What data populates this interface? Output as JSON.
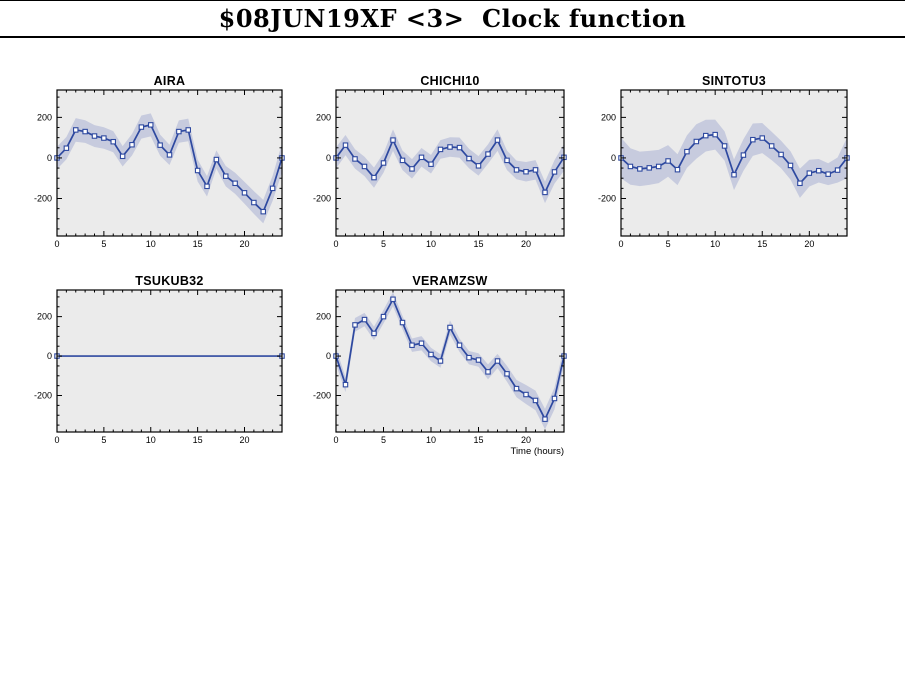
{
  "page": {
    "title": "$08JUN19XF <3>  Clock function",
    "time_axis_label": "Time (hours)"
  },
  "colors": {
    "line": "#2e49a0",
    "band": "#c7cbde",
    "plot_background": "#ebebeb",
    "axis": "#000000",
    "page_background": "#ffffff"
  },
  "axes": {
    "xlim": [
      0,
      24
    ],
    "ylim": [
      -385,
      335
    ],
    "xticks": [
      {
        "v": 0,
        "label": "0"
      },
      {
        "v": 5,
        "label": "5"
      },
      {
        "v": 10,
        "label": "10"
      },
      {
        "v": 15,
        "label": "15"
      },
      {
        "v": 20,
        "label": "20"
      }
    ],
    "yticks": [
      {
        "v": 200,
        "label": "200"
      },
      {
        "v": 0,
        "label": "0"
      },
      {
        "v": -200,
        "label": "-200"
      }
    ],
    "x_minor_step": 1,
    "y_minor_step": 50,
    "grid": false
  },
  "chart_data": [
    {
      "type": "line",
      "title": "AIRA",
      "x": [
        0,
        1,
        2,
        3,
        4,
        5,
        6,
        7,
        8,
        9,
        10,
        11,
        12,
        13,
        14,
        15,
        16,
        17,
        18,
        19,
        20,
        21,
        22,
        23,
        24
      ],
      "values": [
        0,
        48,
        138,
        130,
        108,
        98,
        80,
        8,
        65,
        152,
        163,
        63,
        15,
        130,
        138,
        -62,
        -140,
        -8,
        -90,
        -125,
        -172,
        -220,
        -265,
        -150,
        0
      ],
      "sigma": [
        55,
        55,
        58,
        56,
        54,
        53,
        52,
        50,
        53,
        57,
        57,
        52,
        50,
        55,
        56,
        54,
        50,
        45,
        50,
        52,
        54,
        56,
        58,
        62,
        72
      ],
      "markers": "all"
    },
    {
      "type": "line",
      "title": "CHICHI10",
      "x": [
        0,
        1,
        2,
        3,
        4,
        5,
        6,
        7,
        8,
        9,
        10,
        11,
        12,
        13,
        14,
        15,
        16,
        17,
        18,
        19,
        20,
        21,
        22,
        23,
        24
      ],
      "values": [
        0,
        63,
        -5,
        -42,
        -97,
        -25,
        88,
        -12,
        -54,
        3,
        -31,
        42,
        54,
        51,
        -3,
        -39,
        19,
        88,
        -12,
        -59,
        -68,
        -59,
        -170,
        -69,
        3
      ],
      "sigma": [
        52,
        50,
        48,
        48,
        50,
        48,
        53,
        48,
        48,
        46,
        46,
        46,
        48,
        50,
        48,
        48,
        48,
        53,
        48,
        46,
        48,
        48,
        53,
        58,
        66
      ],
      "markers": "all"
    },
    {
      "type": "line",
      "title": "SINTOTU3",
      "x": [
        0,
        1,
        2,
        3,
        4,
        5,
        6,
        7,
        8,
        9,
        10,
        11,
        12,
        13,
        14,
        15,
        16,
        17,
        18,
        19,
        20,
        21,
        22,
        23,
        24
      ],
      "values": [
        0,
        -42,
        -54,
        -49,
        -42,
        -15,
        -58,
        31,
        81,
        110,
        115,
        59,
        -83,
        14,
        90,
        98,
        59,
        17,
        -37,
        -125,
        -75,
        -63,
        -80,
        -60,
        0
      ],
      "sigma": [
        100,
        90,
        85,
        84,
        82,
        78,
        76,
        80,
        85,
        78,
        74,
        72,
        76,
        78,
        80,
        74,
        70,
        68,
        70,
        72,
        66,
        58,
        54,
        62,
        100
      ],
      "markers": "all"
    },
    {
      "type": "line",
      "title": "TSUKUB32",
      "x": [
        0,
        1,
        2,
        3,
        4,
        5,
        6,
        7,
        8,
        9,
        10,
        11,
        12,
        13,
        14,
        15,
        16,
        17,
        18,
        19,
        20,
        21,
        22,
        23,
        24
      ],
      "values": [
        0,
        0,
        0,
        0,
        0,
        0,
        0,
        0,
        0,
        0,
        0,
        0,
        0,
        0,
        0,
        0,
        0,
        0,
        0,
        0,
        0,
        0,
        0,
        0,
        0
      ],
      "sigma": [
        0,
        0,
        0,
        0,
        0,
        0,
        0,
        0,
        0,
        0,
        0,
        0,
        0,
        0,
        0,
        0,
        0,
        0,
        0,
        0,
        0,
        0,
        0,
        0,
        0
      ],
      "markers": "ends"
    },
    {
      "type": "line",
      "title": "VERAMZSW",
      "x": [
        0,
        1,
        2,
        3,
        4,
        5,
        6,
        7,
        8,
        9,
        10,
        11,
        12,
        13,
        14,
        15,
        16,
        17,
        18,
        19,
        20,
        21,
        22,
        23,
        24
      ],
      "values": [
        0,
        -145,
        158,
        185,
        115,
        200,
        288,
        170,
        55,
        65,
        8,
        -25,
        145,
        55,
        -8,
        -20,
        -80,
        -25,
        -90,
        -165,
        -195,
        -225,
        -320,
        -215,
        0
      ],
      "sigma": [
        42,
        38,
        35,
        34,
        34,
        34,
        36,
        34,
        34,
        36,
        34,
        34,
        36,
        34,
        34,
        34,
        38,
        36,
        40,
        44,
        48,
        50,
        52,
        55,
        46
      ],
      "markers": "ends-and-all"
    }
  ]
}
